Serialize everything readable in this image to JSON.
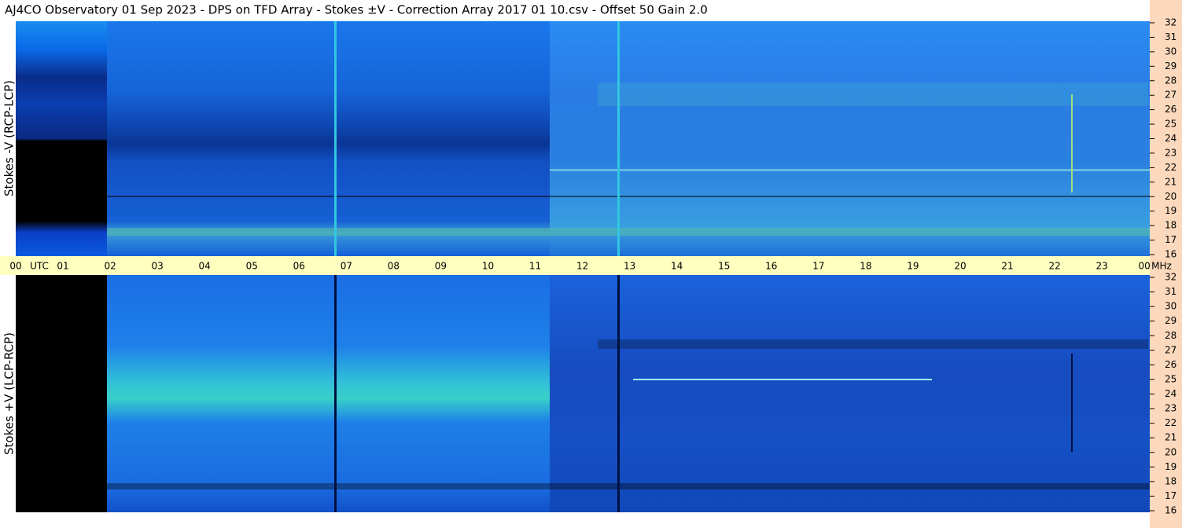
{
  "chart_data": [
    {
      "type": "spectrogram",
      "title": "AJ4CO Observatory  01 Sep 2023  -  DPS on TFD Array  -  Stokes ±V  -  Correction Array 2017 01 10.csv  -  Offset 50  Gain 2.0",
      "ylabel": "Stokes -V (RCP-LCP)",
      "ylim": [
        16,
        32
      ],
      "yticks": [
        32,
        31,
        30,
        29,
        28,
        27,
        26,
        25,
        24,
        23,
        22,
        21,
        20,
        19,
        18,
        17,
        16
      ]
    },
    {
      "type": "spectrogram",
      "ylabel": "Stokes +V (LCP-RCP)",
      "ylim": [
        16,
        32
      ],
      "yticks": [
        32,
        31,
        30,
        29,
        28,
        27,
        26,
        25,
        24,
        23,
        22,
        21,
        20,
        19,
        18,
        17,
        16
      ],
      "xlabel": "UTC",
      "yunit": "MHz",
      "categories": [
        "00",
        "01",
        "02",
        "03",
        "04",
        "05",
        "06",
        "07",
        "08",
        "09",
        "10",
        "11",
        "12",
        "13",
        "14",
        "15",
        "16",
        "17",
        "18",
        "19",
        "20",
        "21",
        "22",
        "23",
        "00"
      ]
    }
  ]
}
